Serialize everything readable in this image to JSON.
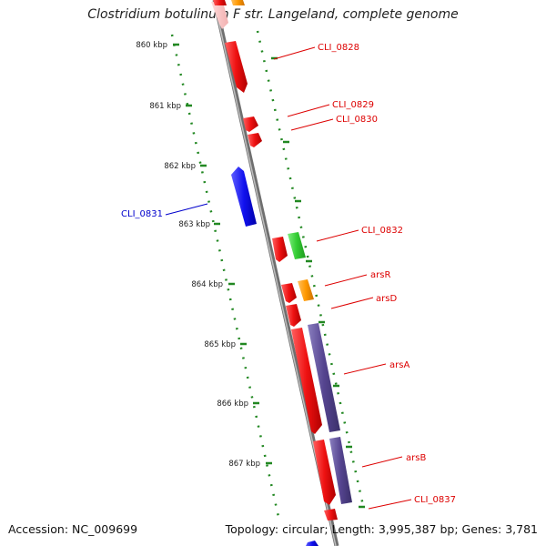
{
  "header": {
    "title": "Clostridium botulinum F str. Langeland, complete genome"
  },
  "footer": {
    "accession": "Accession: NC_009699",
    "summary": "Topology: circular; Length: 3,995,387 bp; Genes: 3,781"
  },
  "colors": {
    "backbone": "#888888",
    "tick": "#228822",
    "tick_label": "#222222",
    "forward_label": "#dd0000",
    "reverse_label": "#0000cc",
    "gene_red": "#ee1111",
    "gene_blue": "#1111ee",
    "gene_orange": "#ff9900",
    "gene_green": "#33cc33",
    "gene_purple": "#55448f"
  },
  "scale": {
    "ticks": [
      "860 kbp",
      "861 kbp",
      "862 kbp",
      "863 kbp",
      "864 kbp",
      "865 kbp",
      "866 kbp",
      "867 kbp"
    ]
  },
  "genes": [
    {
      "label": "CLI_0828",
      "strand": "forward",
      "color_key": "gene_red"
    },
    {
      "label": "CLI_0829",
      "strand": "forward",
      "color_key": "gene_red"
    },
    {
      "label": "CLI_0830",
      "strand": "forward",
      "color_key": "gene_red"
    },
    {
      "label": "CLI_0831",
      "strand": "reverse",
      "color_key": "gene_blue"
    },
    {
      "label": "CLI_0832",
      "strand": "forward",
      "color_key": "gene_red"
    },
    {
      "label": "arsR",
      "strand": "forward",
      "color_key": "gene_red"
    },
    {
      "label": "arsD",
      "strand": "forward",
      "color_key": "gene_red"
    },
    {
      "label": "arsA",
      "strand": "forward",
      "color_key": "gene_red"
    },
    {
      "label": "arsB",
      "strand": "forward",
      "color_key": "gene_red"
    },
    {
      "label": "CLI_0837",
      "strand": "forward",
      "color_key": "gene_red"
    }
  ],
  "features": [
    {
      "color_key": "gene_green"
    },
    {
      "color_key": "gene_orange"
    },
    {
      "color_key": "gene_purple"
    },
    {
      "color_key": "gene_purple"
    }
  ]
}
